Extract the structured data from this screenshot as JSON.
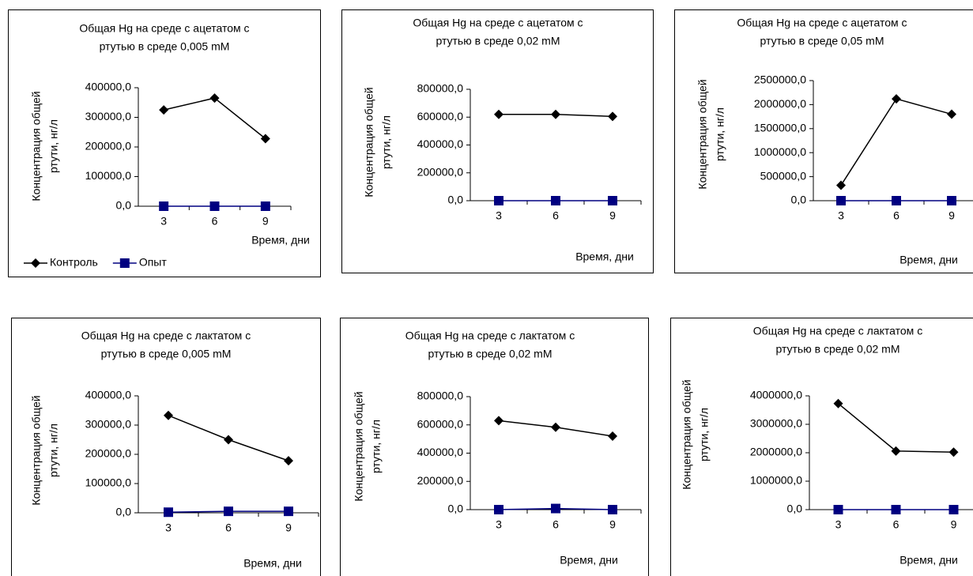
{
  "chart_data": [
    {
      "type": "line",
      "title": [
        "Общая Hg на среде с ацетатом с",
        "ртутью в среде 0,005 mM"
      ],
      "ylabel": [
        "Концентрация общей",
        "ртути, нг/л"
      ],
      "xlabel": "Время, дни",
      "categories": [
        "3",
        "6",
        "9"
      ],
      "series": [
        {
          "name": "Контроль",
          "color": "#000000",
          "marker": "diamond",
          "values": [
            325000,
            365000,
            228000
          ]
        },
        {
          "name": "Опыт",
          "color": "#000080",
          "marker": "square",
          "values": [
            0,
            0,
            0
          ]
        }
      ],
      "ylim": [
        0,
        400000
      ],
      "yticks": [
        {
          "value": 0,
          "label": "0,0"
        },
        {
          "value": 100000,
          "label": "100000,0"
        },
        {
          "value": 200000,
          "label": "200000,0"
        },
        {
          "value": 300000,
          "label": "300000,0"
        },
        {
          "value": 400000,
          "label": "400000,0"
        }
      ],
      "legend": "bottom"
    },
    {
      "type": "line",
      "title": [
        "Общая Hg на среде с ацетатом с",
        "ртутью в среде  0,02 mM"
      ],
      "ylabel": [
        "Концентрация общей",
        "ртути, нг/л"
      ],
      "xlabel": "Время, дни",
      "categories": [
        "3",
        "6",
        "9"
      ],
      "series": [
        {
          "color": "#000000",
          "marker": "diamond",
          "values": [
            620000,
            620000,
            605000
          ]
        },
        {
          "color": "#000080",
          "marker": "square",
          "values": [
            0,
            0,
            0
          ]
        }
      ],
      "ylim": [
        0,
        800000
      ],
      "yticks": [
        {
          "value": 0,
          "label": "0,0"
        },
        {
          "value": 200000,
          "label": "200000,0"
        },
        {
          "value": 400000,
          "label": "400000,0"
        },
        {
          "value": 600000,
          "label": "600000,0"
        },
        {
          "value": 800000,
          "label": "800000,0"
        }
      ]
    },
    {
      "type": "line",
      "title": [
        "Общая Hg на среде с ацетатом с",
        "ртутью в среде   0,05 mM"
      ],
      "ylabel": [
        "Концентрация общей",
        "ртути, нг/л"
      ],
      "xlabel": "Время, дни",
      "categories": [
        "3",
        "6",
        "9"
      ],
      "series": [
        {
          "color": "#000000",
          "marker": "diamond",
          "values": [
            320000,
            2120000,
            1800000
          ]
        },
        {
          "color": "#000080",
          "marker": "square",
          "values": [
            0,
            0,
            0
          ]
        }
      ],
      "ylim": [
        0,
        2500000
      ],
      "yticks": [
        {
          "value": 0,
          "label": "0,0"
        },
        {
          "value": 500000,
          "label": "500000,0"
        },
        {
          "value": 1000000,
          "label": "1000000,0"
        },
        {
          "value": 1500000,
          "label": "1500000,0"
        },
        {
          "value": 2000000,
          "label": "2000000,0"
        },
        {
          "value": 2500000,
          "label": "2500000,0"
        }
      ]
    },
    {
      "type": "line",
      "title": [
        "Общая Hg на среде с лактатом с",
        "ртутью в среде 0,005 mM"
      ],
      "ylabel": [
        "Концентрация общей",
        "ртути, нг/л"
      ],
      "xlabel": "Время, дни",
      "categories": [
        "3",
        "6",
        "9"
      ],
      "series": [
        {
          "color": "#000000",
          "marker": "diamond",
          "values": [
            333000,
            250000,
            178000
          ]
        },
        {
          "color": "#000080",
          "marker": "square",
          "values": [
            2000,
            5000,
            5000
          ]
        }
      ],
      "ylim": [
        0,
        400000
      ],
      "yticks": [
        {
          "value": 0,
          "label": "0,0"
        },
        {
          "value": 100000,
          "label": "100000,0"
        },
        {
          "value": 200000,
          "label": "200000,0"
        },
        {
          "value": 300000,
          "label": "300000,0"
        },
        {
          "value": 400000,
          "label": "400000,0"
        }
      ]
    },
    {
      "type": "line",
      "title": [
        "Общая Hg на среде с лактатом с",
        "ртутью в среде  0,02 mM"
      ],
      "ylabel": [
        "Концентрация общей",
        "ртути, нг/л"
      ],
      "xlabel": "Время, дни",
      "categories": [
        "3",
        "6",
        "9"
      ],
      "series": [
        {
          "color": "#000000",
          "marker": "diamond",
          "values": [
            630000,
            583000,
            520000
          ]
        },
        {
          "color": "#000080",
          "marker": "square",
          "values": [
            0,
            8000,
            0
          ]
        }
      ],
      "ylim": [
        0,
        800000
      ],
      "yticks": [
        {
          "value": 0,
          "label": "0,0"
        },
        {
          "value": 200000,
          "label": "200000,0"
        },
        {
          "value": 400000,
          "label": "400000,0"
        },
        {
          "value": 600000,
          "label": "600000,0"
        },
        {
          "value": 800000,
          "label": "800000,0"
        }
      ]
    },
    {
      "type": "line",
      "title": [
        "Общая Hg на среде с лактатом с",
        "ртутью в среде  0,02 mM"
      ],
      "ylabel": [
        "Концентрация общей",
        "ртути, нг/л"
      ],
      "xlabel": "Время, дни",
      "categories": [
        "3",
        "6",
        "9"
      ],
      "series": [
        {
          "color": "#000000",
          "marker": "diamond",
          "values": [
            3730000,
            2060000,
            2020000
          ]
        },
        {
          "color": "#000080",
          "marker": "square",
          "values": [
            0,
            0,
            0
          ]
        }
      ],
      "ylim": [
        0,
        4000000
      ],
      "yticks": [
        {
          "value": 0,
          "label": "0,0"
        },
        {
          "value": 1000000,
          "label": "1000000,0"
        },
        {
          "value": 2000000,
          "label": "2000000,0"
        },
        {
          "value": 3000000,
          "label": "3000000,0"
        },
        {
          "value": 4000000,
          "label": "4000000,0"
        }
      ]
    }
  ]
}
